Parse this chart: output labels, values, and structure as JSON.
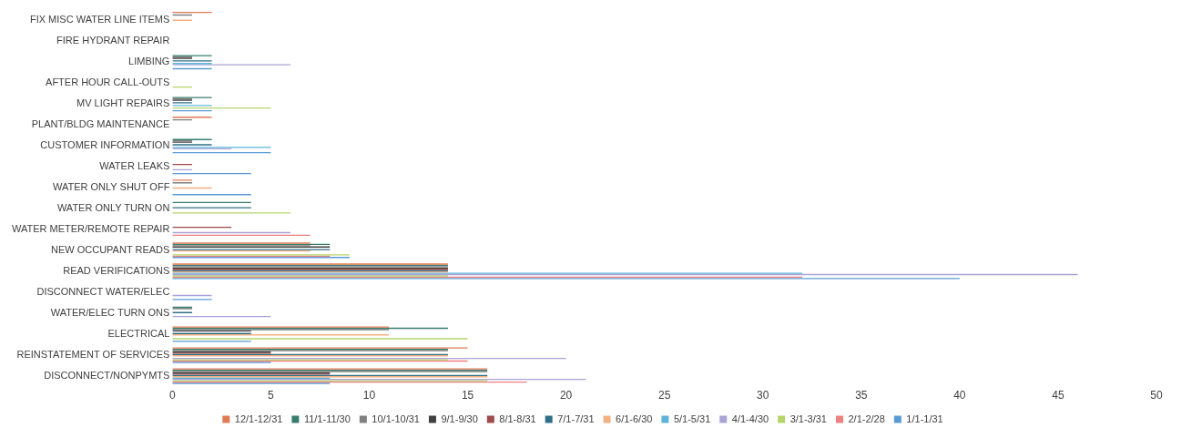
{
  "chart_data": {
    "type": "bar",
    "orientation": "horizontal",
    "categories": [
      "FIX MISC WATER LINE ITEMS",
      "FIRE HYDRANT REPAIR",
      "LIMBING",
      "AFTER HOUR CALL-OUTS",
      "MV LIGHT REPAIRS",
      "PLANT/BLDG MAINTENANCE",
      "CUSTOMER INFORMATION",
      "WATER LEAKS",
      "WATER ONLY SHUT OFF",
      "WATER ONLY TURN ON",
      "WATER METER/REMOTE REPAIR",
      "NEW OCCUPANT READS",
      "READ VERIFICATIONS",
      "DISCONNECT WATER/ELEC",
      "WATER/ELEC TURN ONS",
      "ELECTRICAL",
      "REINSTATEMENT OF SERVICES",
      "DISCONNECT/NONPYMTS"
    ],
    "series": [
      {
        "name": "12/1-12/31",
        "color": "#e07b54",
        "values": [
          2,
          0,
          0,
          0,
          0,
          2,
          0,
          0,
          1,
          0,
          0,
          7,
          14,
          0,
          0,
          11,
          15,
          16
        ]
      },
      {
        "name": "11/1-11/30",
        "color": "#3a7d6e",
        "values": [
          0,
          0,
          2,
          0,
          2,
          0,
          2,
          0,
          0,
          4,
          0,
          8,
          14,
          0,
          1,
          14,
          14,
          16
        ]
      },
      {
        "name": "10/1-10/31",
        "color": "#7f7f7f",
        "values": [
          1,
          0,
          1,
          0,
          1,
          1,
          1,
          0,
          1,
          0,
          0,
          7,
          14,
          0,
          1,
          11,
          14,
          16
        ]
      },
      {
        "name": "9/1-9/30",
        "color": "#404040",
        "values": [
          0,
          0,
          1,
          0,
          1,
          0,
          1,
          0,
          0,
          0,
          0,
          8,
          14,
          0,
          0,
          4,
          5,
          8
        ]
      },
      {
        "name": "8/1-8/31",
        "color": "#9e4a4a",
        "values": [
          0,
          0,
          0,
          0,
          0,
          0,
          0,
          1,
          0,
          0,
          3,
          0,
          14,
          0,
          0,
          0,
          5,
          8
        ]
      },
      {
        "name": "7/1-7/31",
        "color": "#2e6f86",
        "values": [
          0,
          0,
          2,
          0,
          1,
          0,
          2,
          0,
          0,
          4,
          0,
          8,
          14,
          0,
          1,
          4,
          14,
          16
        ]
      },
      {
        "name": "6/1-6/30",
        "color": "#f4b183",
        "values": [
          1,
          0,
          0,
          0,
          0,
          0,
          0,
          0,
          2,
          0,
          0,
          7,
          14,
          0,
          0,
          11,
          14,
          16
        ]
      },
      {
        "name": "5/1-5/31",
        "color": "#5fb3d9",
        "values": [
          0,
          0,
          2,
          0,
          2,
          0,
          5,
          0,
          0,
          0,
          0,
          0,
          32,
          0,
          0,
          0,
          0,
          8
        ]
      },
      {
        "name": "4/1-4/30",
        "color": "#a9a3d6",
        "values": [
          0,
          0,
          6,
          0,
          0,
          0,
          3,
          1,
          0,
          0,
          6,
          0,
          46,
          2,
          5,
          0,
          20,
          21
        ]
      },
      {
        "name": "3/1-3/31",
        "color": "#b5d56a",
        "values": [
          0,
          0,
          0,
          1,
          5,
          0,
          0,
          0,
          0,
          6,
          0,
          9,
          14,
          0,
          0,
          15,
          14,
          16
        ]
      },
      {
        "name": "2/1-2/28",
        "color": "#f08080",
        "values": [
          0,
          0,
          0,
          0,
          0,
          0,
          0,
          0,
          0,
          0,
          7,
          8,
          32,
          0,
          0,
          0,
          15,
          18
        ]
      },
      {
        "name": "1/1-1/31",
        "color": "#5b9bd5",
        "values": [
          0,
          0,
          2,
          0,
          2,
          0,
          5,
          4,
          4,
          0,
          0,
          9,
          40,
          2,
          0,
          4,
          5,
          8
        ]
      }
    ],
    "xlim": [
      0,
      50
    ],
    "xticks": [
      0,
      5,
      10,
      15,
      20,
      25,
      30,
      35,
      40,
      45,
      50
    ],
    "legend": "bottom",
    "grid": false
  }
}
